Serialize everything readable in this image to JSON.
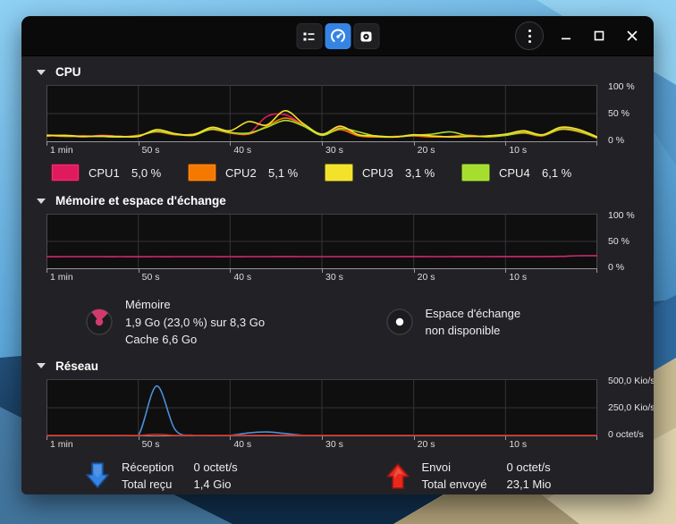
{
  "colors": {
    "accent": "#3584e4",
    "cpu1": "#e01b5d",
    "cpu2": "#f57900",
    "cpu3": "#f3e22a",
    "cpu4": "#a5de2e",
    "memory": "#d23a6e",
    "net_rx": "#4a90d9",
    "net_tx": "#cf2a1e",
    "chart_bg": "#0f0f10",
    "grid": "#35353a",
    "axis": "#98979c"
  },
  "titlebar": {
    "tabs": [
      {
        "id": "processes",
        "icon": "process-list-icon"
      },
      {
        "id": "resources",
        "icon": "speedometer-icon",
        "active": true
      },
      {
        "id": "file-systems",
        "icon": "disk-icon"
      }
    ]
  },
  "sections": {
    "cpu": {
      "title": "CPU",
      "legend": [
        {
          "label": "CPU1",
          "value": "5,0 %",
          "color": "#e01b5d"
        },
        {
          "label": "CPU2",
          "value": "5,1 %",
          "color": "#f57900"
        },
        {
          "label": "CPU3",
          "value": "3,1 %",
          "color": "#f3e22a"
        },
        {
          "label": "CPU4",
          "value": "6,1 %",
          "color": "#a5de2e"
        }
      ]
    },
    "memory": {
      "title": "Mémoire et espace d'échange",
      "memory_label": "Mémoire",
      "memory_value": "1,9 Go (23,0 %) sur 8,3 Go",
      "memory_cache": "Cache 6,6 Go",
      "swap_label": "Espace d'échange",
      "swap_value": "non disponible"
    },
    "network": {
      "title": "Réseau",
      "rx_label": "Réception",
      "rx_rate": "0 octet/s",
      "rx_total_label": "Total reçu",
      "rx_total": "1,4 Gio",
      "tx_label": "Envoi",
      "tx_rate": "0 octet/s",
      "tx_total_label": "Total envoyé",
      "tx_total": "23,1 Mio"
    }
  },
  "chart_data": [
    {
      "id": "cpu",
      "type": "line",
      "title": "CPU history",
      "x_labels": [
        "1 min",
        "50 s",
        "40 s",
        "30 s",
        "20 s",
        "10 s"
      ],
      "y_labels": [
        "100 %",
        "50 %",
        "0 %"
      ],
      "ylim": [
        0,
        100
      ],
      "grid": true,
      "series": [
        {
          "name": "CPU1",
          "color": "#e01b5d",
          "values": [
            13,
            11,
            9,
            12,
            10,
            11,
            21,
            14,
            12,
            24,
            18,
            15,
            45,
            48,
            30,
            14,
            26,
            12,
            10,
            9,
            12,
            10,
            9,
            11,
            10,
            13,
            18,
            12,
            25,
            20,
            8
          ]
        },
        {
          "name": "CPU2",
          "color": "#f57900",
          "values": [
            12,
            10,
            11,
            10,
            9,
            12,
            18,
            13,
            14,
            22,
            16,
            14,
            28,
            42,
            30,
            13,
            22,
            11,
            9,
            10,
            11,
            9,
            10,
            12,
            9,
            12,
            16,
            11,
            22,
            18,
            7
          ]
        },
        {
          "name": "CPU4",
          "color": "#a5de2e",
          "values": [
            12,
            11,
            10,
            10,
            9,
            11,
            19,
            14,
            12,
            23,
            17,
            16,
            26,
            38,
            28,
            12,
            24,
            18,
            10,
            9,
            12,
            14,
            18,
            11,
            10,
            12,
            17,
            12,
            23,
            19,
            8
          ]
        },
        {
          "name": "CPU3",
          "color": "#f3e22a",
          "values": [
            11,
            12,
            10,
            11,
            10,
            10,
            22,
            15,
            13,
            26,
            20,
            36,
            30,
            55,
            32,
            14,
            28,
            13,
            11,
            9,
            13,
            11,
            9,
            10,
            11,
            14,
            20,
            13,
            26,
            22,
            9
          ]
        }
      ]
    },
    {
      "id": "memory",
      "type": "line",
      "title": "Memory and swap history",
      "x_labels": [
        "1 min",
        "50 s",
        "40 s",
        "30 s",
        "20 s",
        "10 s"
      ],
      "y_labels": [
        "100 %",
        "50 %",
        "0 %"
      ],
      "ylim": [
        0,
        100
      ],
      "grid": true,
      "series": [
        {
          "name": "Mémoire",
          "color": "#d02a6a",
          "values": [
            22.5,
            22.5,
            22.6,
            22.5,
            22.5,
            22.4,
            22.5,
            22.5,
            22.6,
            22.5,
            22.5,
            22.5,
            22.6,
            22.7,
            22.6,
            22.5,
            22.6,
            22.6,
            22.5,
            22.6,
            22.7,
            22.6,
            22.6,
            22.7,
            22.6,
            22.7,
            22.8,
            22.8,
            23.0,
            24.2,
            24.4
          ]
        }
      ]
    },
    {
      "id": "network",
      "type": "line",
      "title": "Network history",
      "x_labels": [
        "1 min",
        "50 s",
        "40 s",
        "30 s",
        "20 s",
        "10 s"
      ],
      "y_labels": [
        "500,0 Kio/s",
        "250,0 Kio/s",
        "0 octet/s"
      ],
      "ylim": [
        0,
        500
      ],
      "grid": true,
      "series": [
        {
          "name": "Réception",
          "color": "#4a90d9",
          "values": [
            2,
            1,
            1,
            6,
            3,
            2,
            440,
            60,
            3,
            2,
            2,
            30,
            38,
            25,
            3,
            1,
            1,
            1,
            1,
            1,
            1,
            1,
            1,
            2,
            4,
            2,
            1,
            1,
            5,
            7,
            2
          ]
        },
        {
          "name": "Envoi",
          "color": "#cf2a1e",
          "values": [
            1,
            1,
            1,
            2,
            1,
            2,
            18,
            6,
            1,
            1,
            1,
            8,
            10,
            7,
            1,
            1,
            1,
            1,
            1,
            1,
            1,
            1,
            1,
            1,
            2,
            1,
            1,
            1,
            3,
            4,
            1
          ]
        }
      ]
    }
  ]
}
